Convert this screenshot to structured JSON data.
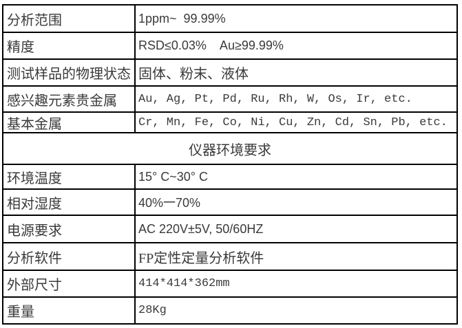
{
  "colors": {
    "border": "#000000",
    "text": "#3a3a3a",
    "background": "#ffffff"
  },
  "table": {
    "section_header": "仪器环境要求",
    "rows": [
      {
        "label": "分析范围",
        "value": "1ppm~  99.99%"
      },
      {
        "label": "精度",
        "value": "RSD≤0.03%    Au≥99.99%"
      },
      {
        "label": "测试样品的物理状态",
        "value": "固体、粉末、液体"
      },
      {
        "label": "感兴趣元素贵金属",
        "value": "Au, Ag, Pt, Pd, Ru, Rh, W, Os, Ir, etc."
      },
      {
        "label": "基本金属",
        "value": "Cr, Mn, Fe, Co, Ni, Cu, Zn, Cd, Sn, Pb, etc."
      },
      {
        "label": "环境温度",
        "value": "15° C~30° C"
      },
      {
        "label": "相对湿度",
        "value": "40%一70%"
      },
      {
        "label": "电源要求",
        "value": "AC 220V±5V, 50/60HZ"
      },
      {
        "label": "分析软件",
        "value": "FP定性定量分析软件"
      },
      {
        "label": "外部尺寸",
        "value": "414*414*362mm"
      },
      {
        "label": "重量",
        "value": "28Kg"
      }
    ]
  }
}
